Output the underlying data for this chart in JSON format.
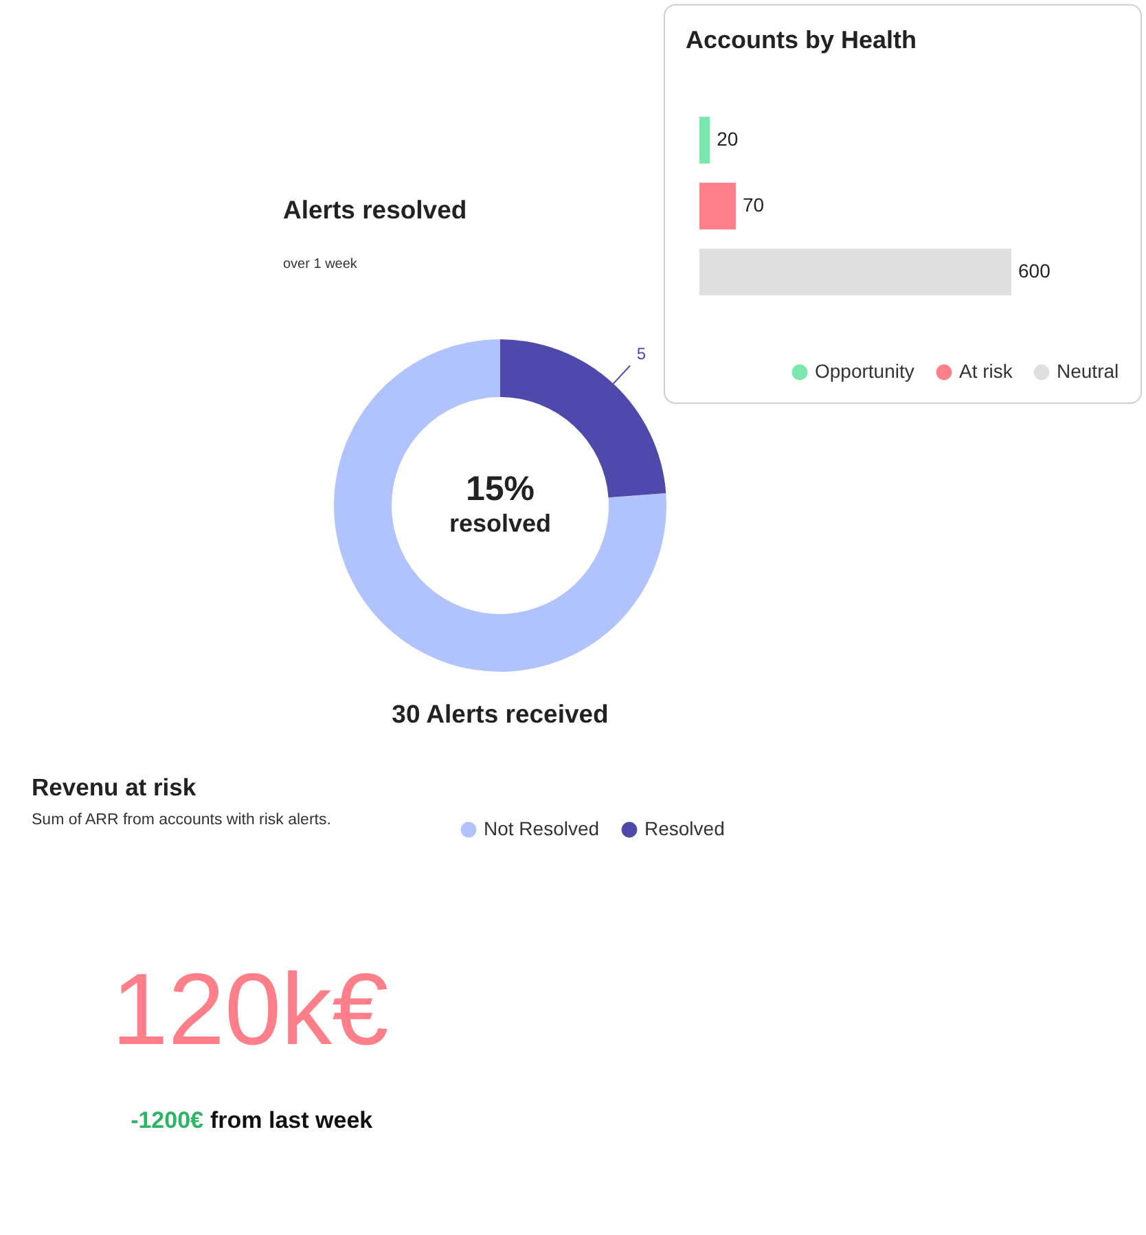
{
  "chart_data": [
    {
      "type": "donut",
      "title": "Alerts resolved",
      "subtitle": "over 1 week",
      "categories": [
        "Not Resolved",
        "Resolved"
      ],
      "values": [
        16,
        5
      ],
      "colors": [
        "#b1c3fc",
        "#4e4aab"
      ],
      "value_labels": [
        null,
        "5"
      ],
      "legend": "bottom",
      "annotations": [
        "15%",
        "resolved",
        "30 Alerts received"
      ]
    },
    {
      "type": "bar",
      "orientation": "horizontal",
      "stacked": true,
      "title": "Accounts by Health",
      "categories": [
        null,
        null,
        null
      ],
      "series": [
        {
          "name": "Opportunity",
          "color": "#7ae8ae",
          "values": [
            20,
            null,
            null
          ]
        },
        {
          "name": "At risk",
          "color": "#ff7f8a",
          "values": [
            null,
            70,
            null
          ]
        },
        {
          "name": "Neutral",
          "color": "#dfdfdf",
          "values": [
            null,
            null,
            600
          ]
        }
      ],
      "data_labels": true,
      "legend": "bottom right"
    },
    {
      "type": "other",
      "title": "Revenu at risk",
      "subtitle": "Sum of ARR from accounts with risk alerts.",
      "annotations": [
        "120k€",
        "-1200€",
        "from last week"
      ]
    }
  ]
}
